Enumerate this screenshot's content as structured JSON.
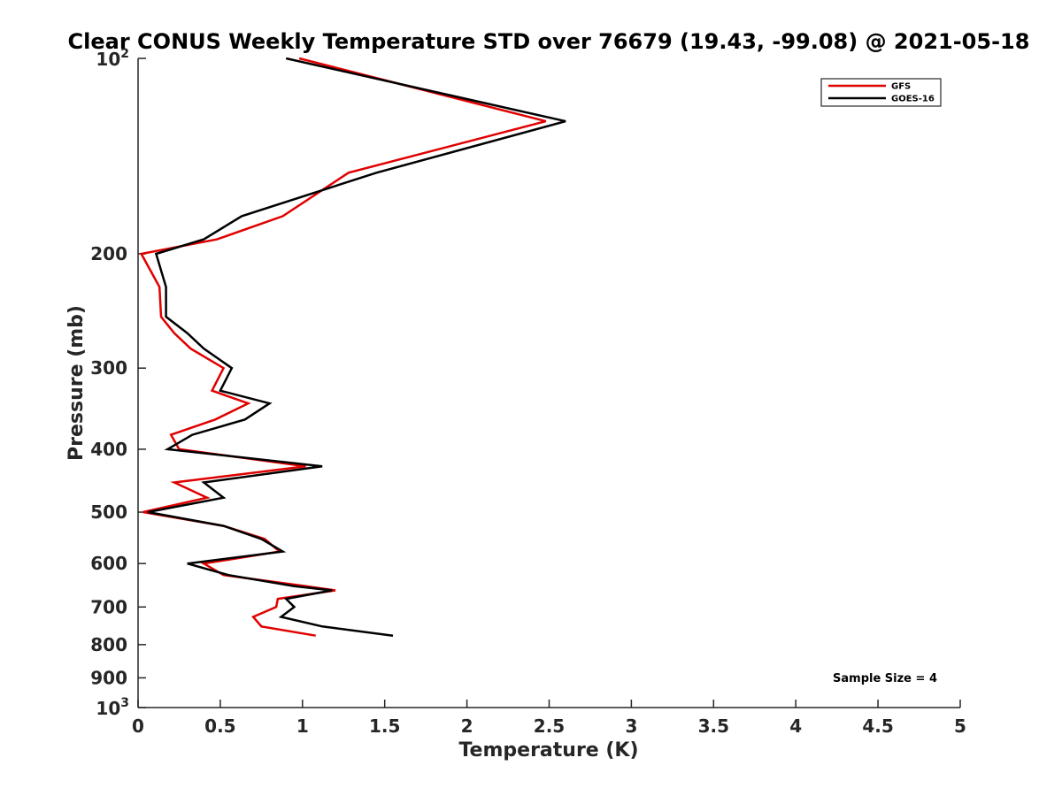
{
  "chart_data": {
    "type": "line",
    "title": "Clear CONUS Weekly Temperature STD over 76679 (19.43, -99.08) @ 2021-05-18",
    "xlabel": "Temperature (K)",
    "ylabel": "Pressure (mb)",
    "xlim": [
      0,
      5
    ],
    "ylim": [
      100,
      1000
    ],
    "y_scale": "log",
    "y_reversed": true,
    "grid": false,
    "legend_position": "top-right",
    "x_ticks": [
      {
        "value": 0,
        "label": "0"
      },
      {
        "value": 0.5,
        "label": "0.5"
      },
      {
        "value": 1,
        "label": "1"
      },
      {
        "value": 1.5,
        "label": "1.5"
      },
      {
        "value": 2,
        "label": "2"
      },
      {
        "value": 2.5,
        "label": "2.5"
      },
      {
        "value": 3,
        "label": "3"
      },
      {
        "value": 3.5,
        "label": "3.5"
      },
      {
        "value": 4,
        "label": "4"
      },
      {
        "value": 4.5,
        "label": "4.5"
      },
      {
        "value": 5,
        "label": "5"
      }
    ],
    "y_ticks": [
      {
        "value": 100,
        "base": "10",
        "exp": "2"
      },
      {
        "value": 200,
        "label": "200"
      },
      {
        "value": 300,
        "label": "300"
      },
      {
        "value": 400,
        "label": "400"
      },
      {
        "value": 500,
        "label": "500"
      },
      {
        "value": 600,
        "label": "600"
      },
      {
        "value": 700,
        "label": "700"
      },
      {
        "value": 800,
        "label": "800"
      },
      {
        "value": 900,
        "label": "900"
      },
      {
        "value": 1000,
        "base": "10",
        "exp": "3"
      }
    ],
    "series": [
      {
        "name": "GFS",
        "color": "#e00000",
        "points": [
          [
            0.98,
            100
          ],
          [
            2.48,
            125
          ],
          [
            1.28,
            150
          ],
          [
            0.88,
            175
          ],
          [
            0.48,
            190
          ],
          [
            0.02,
            200
          ],
          [
            0.13,
            225
          ],
          [
            0.14,
            250
          ],
          [
            0.22,
            265
          ],
          [
            0.32,
            280
          ],
          [
            0.52,
            300
          ],
          [
            0.45,
            325
          ],
          [
            0.67,
            340
          ],
          [
            0.47,
            360
          ],
          [
            0.2,
            380
          ],
          [
            0.25,
            400
          ],
          [
            1.02,
            425
          ],
          [
            0.22,
            450
          ],
          [
            0.42,
            475
          ],
          [
            0.03,
            500
          ],
          [
            0.52,
            525
          ],
          [
            0.77,
            550
          ],
          [
            0.86,
            575
          ],
          [
            0.4,
            600
          ],
          [
            0.52,
            625
          ],
          [
            1.02,
            650
          ],
          [
            1.2,
            660
          ],
          [
            0.85,
            680
          ],
          [
            0.84,
            700
          ],
          [
            0.7,
            725
          ],
          [
            0.75,
            750
          ],
          [
            1.08,
            775
          ]
        ]
      },
      {
        "name": "GOES-16",
        "color": "#000000",
        "points": [
          [
            0.9,
            100
          ],
          [
            2.6,
            125
          ],
          [
            1.45,
            150
          ],
          [
            0.63,
            175
          ],
          [
            0.4,
            190
          ],
          [
            0.11,
            200
          ],
          [
            0.17,
            225
          ],
          [
            0.17,
            250
          ],
          [
            0.3,
            265
          ],
          [
            0.4,
            280
          ],
          [
            0.57,
            300
          ],
          [
            0.5,
            325
          ],
          [
            0.8,
            340
          ],
          [
            0.65,
            360
          ],
          [
            0.33,
            380
          ],
          [
            0.18,
            400
          ],
          [
            1.12,
            425
          ],
          [
            0.4,
            450
          ],
          [
            0.52,
            475
          ],
          [
            0.06,
            500
          ],
          [
            0.52,
            525
          ],
          [
            0.75,
            550
          ],
          [
            0.88,
            575
          ],
          [
            0.3,
            600
          ],
          [
            0.55,
            625
          ],
          [
            0.95,
            650
          ],
          [
            1.18,
            660
          ],
          [
            0.9,
            680
          ],
          [
            0.95,
            700
          ],
          [
            0.87,
            725
          ],
          [
            1.12,
            750
          ],
          [
            1.55,
            775
          ]
        ]
      }
    ],
    "annotation": "Sample Size = 4"
  }
}
